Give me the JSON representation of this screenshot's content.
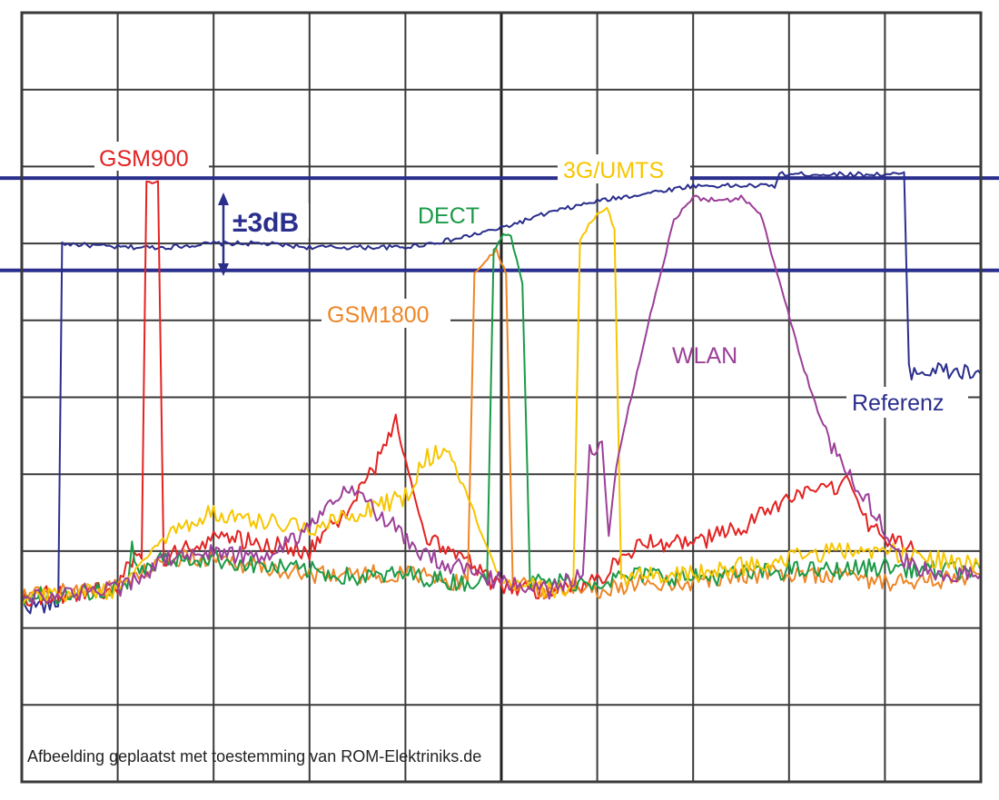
{
  "caption": "Afbeelding geplaatst met toestemming van ROM-Elektriniks.de",
  "chart_data": {
    "type": "line",
    "title": "",
    "xlabel": "",
    "ylabel": "",
    "grid": true,
    "grid_divisions": {
      "x": 10,
      "y": 10
    },
    "xlim": [
      0,
      10
    ],
    "ylim": [
      0,
      10
    ],
    "tolerance_band": {
      "label": "±3dB",
      "upper": 7.85,
      "lower": 6.65,
      "color": "#2a2e8c"
    },
    "annotations": [
      {
        "text": "GSM900",
        "series": "GSM900"
      },
      {
        "text": "GSM1800",
        "series": "GSM1800"
      },
      {
        "text": "DECT",
        "series": "DECT"
      },
      {
        "text": "3G/UMTS",
        "series": "3G/UMTS"
      },
      {
        "text": "WLAN",
        "series": "WLAN"
      },
      {
        "text": "Referenz",
        "series": "Referenz"
      }
    ],
    "series": [
      {
        "name": "Referenz",
        "color": "#2a2e8c",
        "points": [
          [
            0,
            2.3
          ],
          [
            0.38,
            2.3
          ],
          [
            0.42,
            7.0
          ],
          [
            1.0,
            6.95
          ],
          [
            1.5,
            6.95
          ],
          [
            2.0,
            7.0
          ],
          [
            2.5,
            7.0
          ],
          [
            3.0,
            6.95
          ],
          [
            3.5,
            6.95
          ],
          [
            4.0,
            6.95
          ],
          [
            4.5,
            7.05
          ],
          [
            5.0,
            7.2
          ],
          [
            5.5,
            7.4
          ],
          [
            6.0,
            7.55
          ],
          [
            6.5,
            7.65
          ],
          [
            7.0,
            7.75
          ],
          [
            7.5,
            7.75
          ],
          [
            7.85,
            7.75
          ],
          [
            7.9,
            7.9
          ],
          [
            8.5,
            7.9
          ],
          [
            9.0,
            7.9
          ],
          [
            9.2,
            7.9
          ],
          [
            9.25,
            5.35
          ],
          [
            9.5,
            5.35
          ],
          [
            10,
            5.3
          ]
        ]
      },
      {
        "name": "GSM900",
        "color": "#e32322",
        "points": [
          [
            0,
            2.4
          ],
          [
            1.0,
            2.5
          ],
          [
            1.15,
            2.9
          ],
          [
            1.25,
            2.9
          ],
          [
            1.3,
            7.8
          ],
          [
            1.42,
            7.8
          ],
          [
            1.48,
            2.9
          ],
          [
            2.0,
            3.2
          ],
          [
            2.5,
            3.1
          ],
          [
            3.0,
            3.0
          ],
          [
            3.3,
            3.4
          ],
          [
            3.6,
            3.9
          ],
          [
            3.8,
            4.4
          ],
          [
            3.9,
            4.7
          ],
          [
            4.0,
            4.2
          ],
          [
            4.2,
            3.2
          ],
          [
            4.5,
            3.0
          ],
          [
            5.0,
            2.5
          ],
          [
            5.5,
            2.5
          ],
          [
            6.0,
            2.6
          ],
          [
            6.3,
            3.0
          ],
          [
            6.5,
            3.1
          ],
          [
            7.0,
            3.1
          ],
          [
            7.5,
            3.3
          ],
          [
            8.0,
            3.7
          ],
          [
            8.5,
            3.8
          ],
          [
            8.6,
            4.0
          ],
          [
            8.8,
            3.4
          ],
          [
            9.0,
            3.2
          ],
          [
            9.3,
            3.0
          ]
        ]
      },
      {
        "name": "GSM1800",
        "color": "#ee8627",
        "points": [
          [
            0,
            2.4
          ],
          [
            1.0,
            2.55
          ],
          [
            1.5,
            2.9
          ],
          [
            2.0,
            2.9
          ],
          [
            2.5,
            2.8
          ],
          [
            3.0,
            2.7
          ],
          [
            3.5,
            2.7
          ],
          [
            4.0,
            2.7
          ],
          [
            4.5,
            2.6
          ],
          [
            4.65,
            2.6
          ],
          [
            4.72,
            6.6
          ],
          [
            4.88,
            6.85
          ],
          [
            4.95,
            6.9
          ],
          [
            5.05,
            6.6
          ],
          [
            5.12,
            2.6
          ],
          [
            5.5,
            2.5
          ],
          [
            6.0,
            2.5
          ],
          [
            6.5,
            2.6
          ],
          [
            7.0,
            2.6
          ],
          [
            7.5,
            2.7
          ],
          [
            8.0,
            2.7
          ],
          [
            8.5,
            2.7
          ],
          [
            9.0,
            2.6
          ],
          [
            9.5,
            2.6
          ],
          [
            10,
            2.7
          ]
        ]
      },
      {
        "name": "DECT",
        "color": "#1a9a47",
        "points": [
          [
            0,
            2.4
          ],
          [
            1.1,
            2.5
          ],
          [
            1.15,
            3.1
          ],
          [
            1.2,
            2.7
          ],
          [
            1.5,
            2.9
          ],
          [
            2.0,
            2.9
          ],
          [
            2.5,
            2.8
          ],
          [
            3.0,
            2.75
          ],
          [
            3.5,
            2.65
          ],
          [
            4.0,
            2.7
          ],
          [
            4.5,
            2.6
          ],
          [
            4.85,
            2.6
          ],
          [
            4.92,
            6.9
          ],
          [
            5.02,
            7.15
          ],
          [
            5.1,
            7.1
          ],
          [
            5.22,
            6.5
          ],
          [
            5.3,
            2.6
          ],
          [
            5.5,
            2.6
          ],
          [
            6.0,
            2.6
          ],
          [
            6.5,
            2.7
          ],
          [
            7.0,
            2.65
          ],
          [
            7.5,
            2.7
          ],
          [
            8.0,
            2.75
          ],
          [
            8.5,
            2.75
          ],
          [
            9.0,
            2.8
          ],
          [
            9.5,
            2.75
          ],
          [
            10,
            2.75
          ]
        ]
      },
      {
        "name": "3G/UMTS",
        "color": "#f7c600",
        "points": [
          [
            0,
            2.4
          ],
          [
            1.0,
            2.5
          ],
          [
            1.5,
            3.2
          ],
          [
            1.8,
            3.4
          ],
          [
            2.0,
            3.5
          ],
          [
            2.5,
            3.4
          ],
          [
            3.0,
            3.3
          ],
          [
            3.5,
            3.5
          ],
          [
            4.0,
            3.7
          ],
          [
            4.2,
            4.2
          ],
          [
            4.4,
            4.3
          ],
          [
            4.6,
            3.9
          ],
          [
            4.8,
            3.2
          ],
          [
            5.0,
            2.6
          ],
          [
            5.5,
            2.5
          ],
          [
            5.75,
            2.5
          ],
          [
            5.82,
            7.05
          ],
          [
            6.0,
            7.4
          ],
          [
            6.1,
            7.45
          ],
          [
            6.18,
            7.2
          ],
          [
            6.25,
            2.6
          ],
          [
            6.5,
            2.7
          ],
          [
            7.0,
            2.7
          ],
          [
            7.5,
            2.8
          ],
          [
            8.0,
            2.9
          ],
          [
            8.5,
            3.0
          ],
          [
            9.0,
            3.0
          ],
          [
            9.5,
            2.9
          ],
          [
            10,
            2.8
          ]
        ]
      },
      {
        "name": "WLAN",
        "color": "#9c3f98",
        "points": [
          [
            0,
            2.4
          ],
          [
            1.0,
            2.5
          ],
          [
            1.5,
            2.9
          ],
          [
            2.0,
            3.0
          ],
          [
            2.5,
            2.9
          ],
          [
            3.0,
            3.3
          ],
          [
            3.3,
            3.7
          ],
          [
            3.5,
            3.8
          ],
          [
            3.7,
            3.5
          ],
          [
            3.9,
            3.3
          ],
          [
            4.1,
            3.0
          ],
          [
            4.5,
            2.8
          ],
          [
            5.0,
            2.6
          ],
          [
            5.5,
            2.5
          ],
          [
            5.85,
            2.7
          ],
          [
            5.92,
            4.3
          ],
          [
            6.05,
            4.4
          ],
          [
            6.12,
            3.2
          ],
          [
            6.2,
            4.1
          ],
          [
            6.3,
            4.7
          ],
          [
            6.5,
            5.8
          ],
          [
            6.8,
            7.3
          ],
          [
            7.0,
            7.6
          ],
          [
            7.3,
            7.55
          ],
          [
            7.5,
            7.6
          ],
          [
            7.7,
            7.4
          ],
          [
            7.9,
            6.5
          ],
          [
            8.1,
            5.6
          ],
          [
            8.3,
            4.8
          ],
          [
            8.5,
            4.2
          ],
          [
            8.8,
            3.7
          ],
          [
            9.0,
            3.3
          ],
          [
            9.2,
            2.9
          ],
          [
            9.5,
            2.7
          ],
          [
            10,
            2.7
          ]
        ]
      }
    ]
  }
}
